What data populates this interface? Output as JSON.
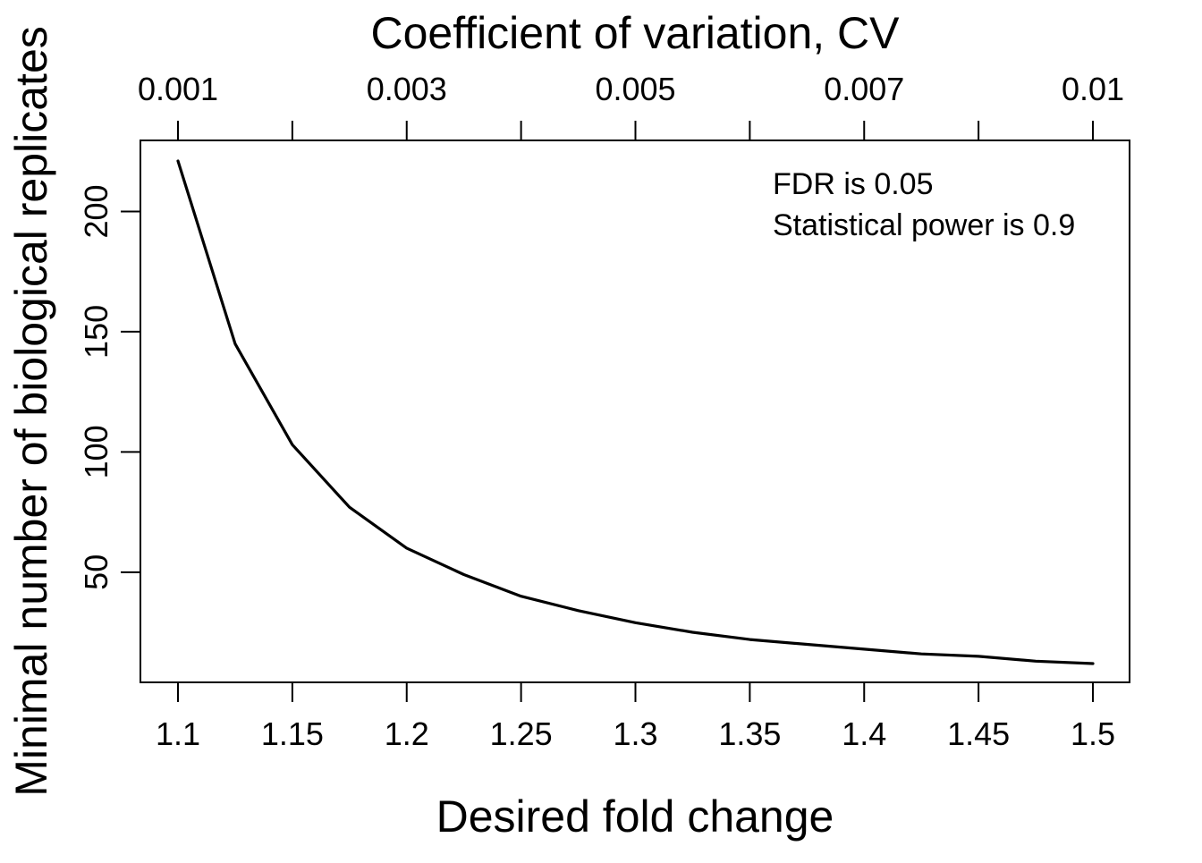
{
  "chart_data": {
    "type": "line",
    "xlabel": "Desired fold change",
    "ylabel": "Minimal number of biological replicates",
    "top_axis_label": "Coefficient of variation, CV",
    "x": [
      1.1,
      1.125,
      1.15,
      1.175,
      1.2,
      1.225,
      1.25,
      1.275,
      1.3,
      1.325,
      1.35,
      1.375,
      1.4,
      1.425,
      1.45,
      1.475,
      1.5
    ],
    "series": [
      {
        "values": [
          221,
          145,
          103,
          77,
          60,
          49,
          40,
          34,
          29,
          25,
          22,
          20,
          18,
          16,
          15,
          13,
          12
        ]
      }
    ],
    "xlim": [
      1.1,
      1.5
    ],
    "ylim": [
      12,
      221
    ],
    "x_ticks": [
      1.1,
      1.15,
      1.2,
      1.25,
      1.3,
      1.35,
      1.4,
      1.45,
      1.5
    ],
    "x_tick_labels": [
      "1.1",
      "1.15",
      "1.2",
      "1.25",
      "1.3",
      "1.35",
      "1.4",
      "1.45",
      "1.5"
    ],
    "y_ticks": [
      50,
      100,
      150,
      200
    ],
    "y_tick_labels": [
      "50",
      "100",
      "150",
      "200"
    ],
    "top_ticks": [
      1.1,
      1.15,
      1.2,
      1.25,
      1.3,
      1.35,
      1.4,
      1.45,
      1.5
    ],
    "top_tick_labels": [
      "0.001",
      "",
      "0.003",
      "",
      "0.005",
      "",
      "0.007",
      "",
      "0.01"
    ],
    "annotations": [
      "FDR is 0.05",
      "Statistical power is 0.9"
    ],
    "annotation_position": "top-right",
    "grid": false,
    "line_color": "#000000"
  }
}
